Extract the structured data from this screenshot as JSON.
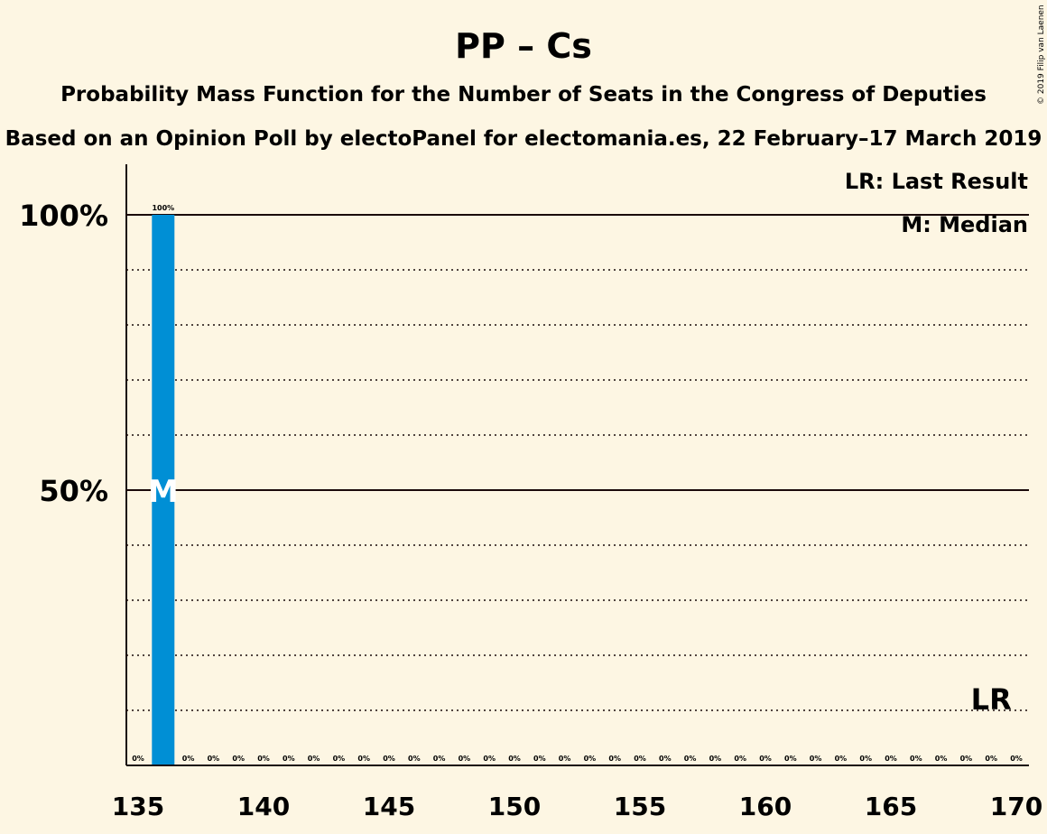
{
  "chart_data": {
    "type": "bar",
    "title": "PP – Cs",
    "subtitle": "Probability Mass Function for the Number of Seats in the Congress of Deputies",
    "subtitle2": "Based on an Opinion Poll by electoPanel for electomania.es, 22 February–17 March 2019",
    "copyright": "© 2019 Filip van Laenen",
    "legend": [
      "LR: Last Result",
      "M: Median"
    ],
    "legend_position": "top-right",
    "bar_color": "#008fd5",
    "x_range": [
      135,
      170
    ],
    "ylim": [
      0,
      1.0
    ],
    "x_ticks": [
      135,
      140,
      145,
      150,
      155,
      160,
      165,
      170
    ],
    "y_ticks": [
      {
        "value": 0.5,
        "label": "50%"
      },
      {
        "value": 1.0,
        "label": "100%"
      }
    ],
    "grid": "dotted every 10%",
    "x": [
      136,
      137,
      138,
      139,
      140,
      141,
      142,
      143,
      144,
      145,
      146,
      147,
      148,
      149,
      150,
      151,
      152,
      153,
      154,
      155,
      156,
      157,
      158,
      159,
      160,
      161,
      162,
      163,
      164,
      165,
      166,
      167,
      168,
      169,
      170
    ],
    "values": [
      1.0,
      0,
      0,
      0,
      0,
      0,
      0,
      0,
      0,
      0,
      0,
      0,
      0,
      0,
      0,
      0,
      0,
      0,
      0,
      0,
      0,
      0,
      0,
      0,
      0,
      0,
      0,
      0,
      0,
      0,
      0,
      0,
      0,
      0,
      0
    ],
    "labels": [
      "0%",
      "100%",
      "0%",
      "0%",
      "0%",
      "0%",
      "0%",
      "0%",
      "0%",
      "0%",
      "0%",
      "0%",
      "0%",
      "0%",
      "0%",
      "0%",
      "0%",
      "0%",
      "0%",
      "0%",
      "0%",
      "0%",
      "0%",
      "0%",
      "0%",
      "0%",
      "0%",
      "0%",
      "0%",
      "0%",
      "0%",
      "0%",
      "0%",
      "0%",
      "0%",
      "0%"
    ],
    "label_x": [
      135,
      136,
      137,
      138,
      139,
      140,
      141,
      142,
      143,
      144,
      145,
      146,
      147,
      148,
      149,
      150,
      151,
      152,
      153,
      154,
      155,
      156,
      157,
      158,
      159,
      160,
      161,
      162,
      163,
      164,
      165,
      166,
      167,
      168,
      169,
      170
    ],
    "median": 136,
    "median_label": "M",
    "last_result": 169,
    "last_result_label": "LR"
  }
}
